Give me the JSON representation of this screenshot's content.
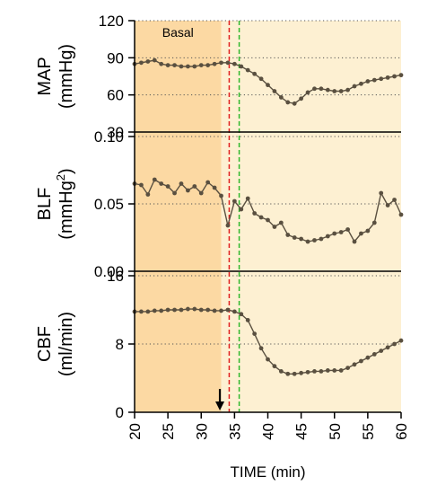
{
  "chart_data": {
    "type": "line",
    "shared_x": {
      "label": "TIME (min)",
      "range": [
        20,
        60
      ],
      "ticks": [
        "20",
        "25",
        "30",
        "35",
        "40",
        "45",
        "50",
        "55",
        "60"
      ]
    },
    "regions": [
      {
        "label": "Basal",
        "x_start": 20,
        "x_end": 33,
        "color": "#fcd9a3"
      },
      {
        "label": "",
        "x_start": 33,
        "x_end": 60,
        "color": "#fdf0d2"
      }
    ],
    "markers": [
      {
        "type": "arrow",
        "x": 32.8,
        "color": "#000000"
      },
      {
        "type": "vline",
        "x": 34.2,
        "color": "#e02020",
        "style": "dashed"
      },
      {
        "type": "vline",
        "x": 35.7,
        "color": "#2db82d",
        "style": "dashed"
      }
    ],
    "line_color": "#5a5040",
    "panels": [
      {
        "name": "MAP",
        "ylabel_line1": "MAP",
        "ylabel_line2": "(mmHg)",
        "ylim": [
          30,
          120
        ],
        "yticks": [
          "30",
          "60",
          "90",
          "120"
        ],
        "grid": "dotted",
        "x": [
          20,
          21,
          22,
          23,
          24,
          25,
          26,
          27,
          28,
          29,
          30,
          31,
          32,
          33,
          34,
          35,
          36,
          37,
          38,
          39,
          40,
          41,
          42,
          43,
          44,
          45,
          46,
          47,
          48,
          49,
          50,
          51,
          52,
          53,
          54,
          55,
          56,
          57,
          58,
          59,
          60
        ],
        "y": [
          85,
          86,
          87,
          88,
          85,
          84,
          84,
          83,
          83,
          83,
          84,
          84,
          85,
          86,
          86,
          85,
          83,
          80,
          77,
          73,
          68,
          63,
          58,
          54,
          53,
          57,
          62,
          65,
          65,
          64,
          63,
          63,
          64,
          67,
          69,
          71,
          72,
          73,
          74,
          75,
          76
        ]
      },
      {
        "name": "BLF",
        "ylabel_line1": "BLF",
        "ylabel_line2": "(mmHg",
        "ylabel_sup": "2",
        "ylabel_line2_end": ")",
        "ylim": [
          0,
          0.1
        ],
        "yticks": [
          "0.00",
          "0.05",
          "0.10"
        ],
        "grid": "dotted",
        "x": [
          20,
          21,
          22,
          23,
          24,
          25,
          26,
          27,
          28,
          29,
          30,
          31,
          32,
          33,
          34,
          35,
          36,
          37,
          38,
          39,
          40,
          41,
          42,
          43,
          44,
          45,
          46,
          47,
          48,
          49,
          50,
          51,
          52,
          53,
          54,
          55,
          56,
          57,
          58,
          59,
          60
        ],
        "y": [
          0.065,
          0.064,
          0.057,
          0.068,
          0.065,
          0.063,
          0.058,
          0.065,
          0.06,
          0.063,
          0.058,
          0.066,
          0.062,
          0.056,
          0.034,
          0.052,
          0.046,
          0.054,
          0.043,
          0.04,
          0.038,
          0.033,
          0.036,
          0.027,
          0.025,
          0.024,
          0.022,
          0.023,
          0.024,
          0.026,
          0.028,
          0.029,
          0.031,
          0.022,
          0.028,
          0.03,
          0.036,
          0.058,
          0.049,
          0.053,
          0.042
        ]
      },
      {
        "name": "CBF",
        "ylabel_line1": "CBF",
        "ylabel_line2": "(ml/min)",
        "ylim": [
          0,
          16
        ],
        "yticks": [
          "0",
          "8",
          "16"
        ],
        "grid": "dotted",
        "x": [
          20,
          21,
          22,
          23,
          24,
          25,
          26,
          27,
          28,
          29,
          30,
          31,
          32,
          33,
          34,
          35,
          36,
          37,
          38,
          39,
          40,
          41,
          42,
          43,
          44,
          45,
          46,
          47,
          48,
          49,
          50,
          51,
          52,
          53,
          54,
          55,
          56,
          57,
          58,
          59,
          60
        ],
        "y": [
          11.8,
          11.8,
          11.8,
          11.9,
          11.9,
          12.0,
          12.0,
          12.0,
          12.1,
          12.1,
          12.0,
          12.0,
          11.9,
          11.9,
          12.0,
          11.8,
          11.5,
          10.8,
          9.2,
          7.5,
          6.2,
          5.4,
          4.8,
          4.5,
          4.5,
          4.6,
          4.7,
          4.8,
          4.8,
          4.9,
          4.9,
          4.9,
          5.2,
          5.6,
          6.0,
          6.4,
          6.8,
          7.2,
          7.6,
          8.0,
          8.4
        ]
      }
    ]
  }
}
